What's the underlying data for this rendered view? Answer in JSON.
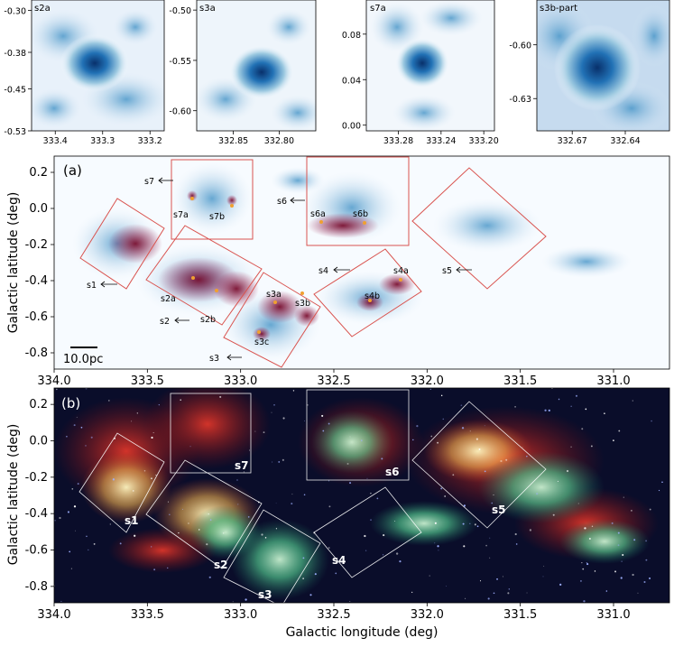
{
  "chart_data": [
    {
      "type": "other",
      "panel": "inset",
      "title": "s2a",
      "x_ticks": [
        "333.4",
        "333.3",
        "333.2"
      ],
      "y_ticks": [
        "-0.30",
        "-0.38",
        "-0.45",
        "-0.53"
      ],
      "xlim": [
        333.45,
        333.17
      ],
      "ylim": [
        -0.53,
        -0.28
      ]
    },
    {
      "type": "other",
      "panel": "inset",
      "title": "s3a",
      "x_ticks": [
        "332.85",
        "332.80"
      ],
      "y_ticks": [
        "-0.50",
        "-0.55",
        "-0.60"
      ],
      "xlim": [
        332.89,
        332.76
      ],
      "ylim": [
        -0.62,
        -0.49
      ]
    },
    {
      "type": "other",
      "panel": "inset",
      "title": "s7a",
      "x_ticks": [
        "333.28",
        "333.24",
        "333.20"
      ],
      "y_ticks": [
        "0.08",
        "0.04",
        "0.00"
      ],
      "xlim": [
        333.31,
        333.19
      ],
      "ylim": [
        -0.005,
        0.11
      ]
    },
    {
      "type": "other",
      "panel": "inset",
      "title": "s3b-part",
      "x_ticks": [
        "332.67",
        "332.64"
      ],
      "y_ticks": [
        "-0.60",
        "-0.63"
      ],
      "xlim": [
        332.69,
        332.615
      ],
      "ylim": [
        -0.648,
        -0.575
      ]
    },
    {
      "type": "other",
      "panel": "(a)",
      "xlim": [
        334.0,
        330.7
      ],
      "ylim": [
        -0.89,
        0.29
      ],
      "x_ticks": [
        "334.0",
        "333.5",
        "333.0",
        "332.5",
        "332.0",
        "331.5",
        "331.0"
      ],
      "y_ticks": [
        "0.2",
        "0.0",
        "-0.2",
        "-0.4",
        "-0.6",
        "-0.8"
      ],
      "ylabel": "Galactic latitude (deg)",
      "scalebar": "10.0pc",
      "regions": [
        "s1",
        "s2",
        "s3",
        "s4",
        "s5",
        "s6",
        "s7"
      ],
      "clumps": [
        "s7a",
        "s7b",
        "s6a",
        "s6b",
        "s2a",
        "s2b",
        "s3a",
        "s3b",
        "s3c",
        "s4a",
        "s4b"
      ]
    },
    {
      "type": "other",
      "panel": "(b)",
      "xlim": [
        334.0,
        330.7
      ],
      "ylim": [
        -0.89,
        0.29
      ],
      "x_ticks": [
        "334.0",
        "333.5",
        "333.0",
        "332.5",
        "332.0",
        "331.5",
        "331.0"
      ],
      "y_ticks": [
        "0.2",
        "0.0",
        "-0.2",
        "-0.4",
        "-0.6",
        "-0.8"
      ],
      "xlabel": "Galactic longitude (deg)",
      "ylabel": "Galactic latitude (deg)",
      "regions": [
        "s1",
        "s2",
        "s3",
        "s4",
        "s5",
        "s6",
        "s7"
      ]
    }
  ],
  "colors": {
    "region_a": "#d9534f",
    "region_b": "#ffffff",
    "clump": "#f0a030"
  }
}
